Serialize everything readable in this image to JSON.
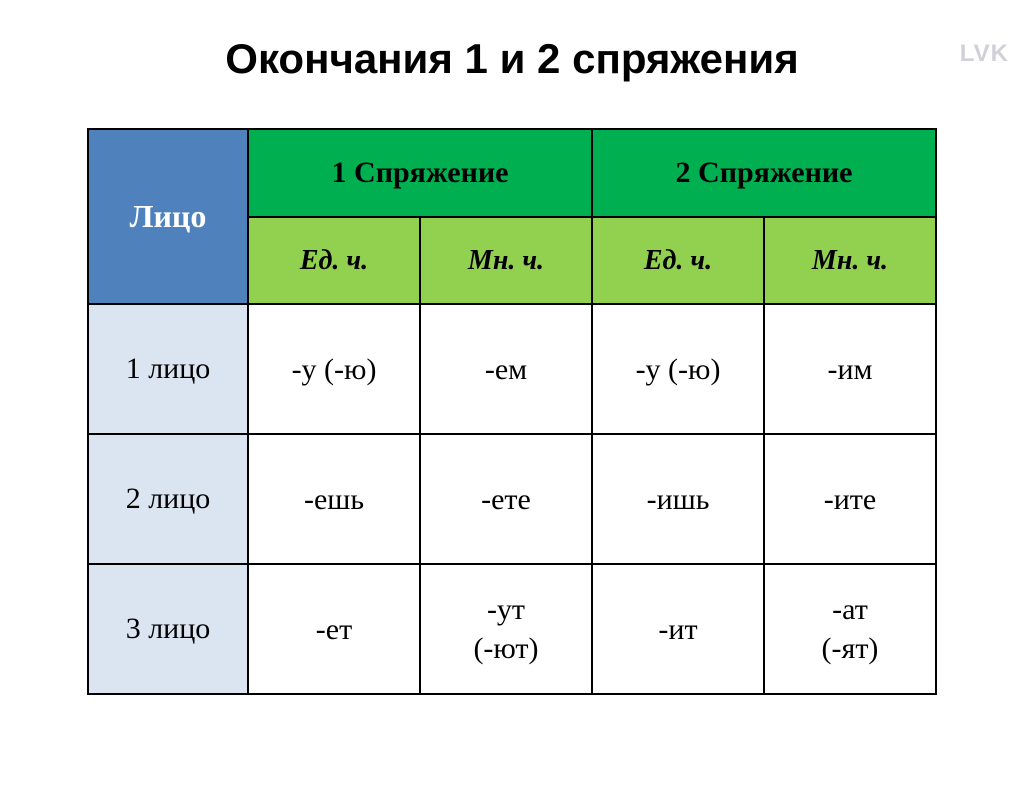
{
  "watermark": "LVK",
  "title": "Окончания 1 и 2 спряжения",
  "table": {
    "colors": {
      "header_person_bg": "#4f81bd",
      "header_conj_bg": "#00b050",
      "header_number_bg": "#92d050",
      "row_label_bg": "#dbe5f1",
      "cell_bg": "#ffffff",
      "border": "#000000"
    },
    "header": {
      "person": "Лицо",
      "conj1": "1 Спряжение",
      "conj2": "2 Спряжение",
      "sg": "Ед. ч.",
      "pl": "Мн. ч."
    },
    "rows": [
      {
        "label": "1 лицо",
        "c1_sg": "-у (-ю)",
        "c1_pl": "-ем",
        "c2_sg": "-у (-ю)",
        "c2_pl": "-им"
      },
      {
        "label": "2 лицо",
        "c1_sg": "-ешь",
        "c1_pl": "-ете",
        "c2_sg": "-ишь",
        "c2_pl": "-ите"
      },
      {
        "label": "3 лицо",
        "c1_sg": "-ет",
        "c1_pl": "-ут\n(-ют)",
        "c2_sg": "-ит",
        "c2_pl": "-ат\n(-ят)"
      }
    ]
  }
}
